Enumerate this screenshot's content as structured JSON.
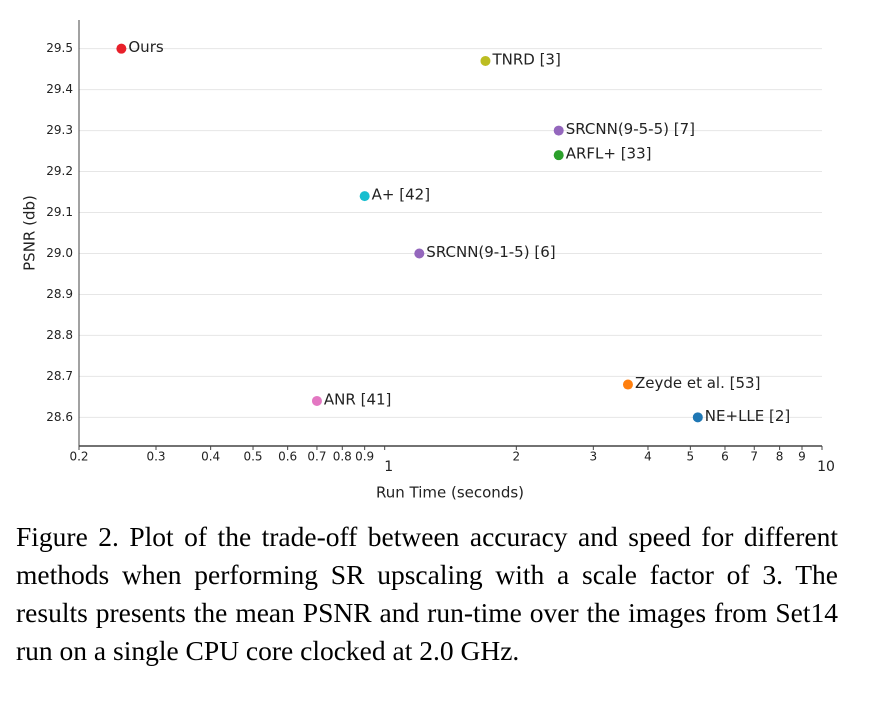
{
  "chart_data": {
    "type": "scatter",
    "xlabel": "Run Time (seconds)",
    "ylabel": "PSNR (db)",
    "log_x": true,
    "grid": true,
    "xlim": [
      0.2,
      10
    ],
    "ylim": [
      28.53,
      29.57
    ],
    "xticks": [
      0.2,
      0.3,
      0.4,
      0.5,
      0.6,
      0.7,
      0.8,
      0.9,
      1,
      2,
      3,
      4,
      5,
      6,
      7,
      8,
      9,
      10
    ],
    "yticks": [
      29.5,
      29.4,
      29.3,
      29.2,
      29.1,
      {
        "value": 29,
        "label": "29.0"
      },
      28.9,
      28.8,
      28.7,
      28.6
    ],
    "series": [
      {
        "name": "Ours",
        "color": "#e8202a",
        "x": [
          0.25
        ],
        "values": [
          29.5
        ]
      },
      {
        "name": "TNRD [3]",
        "color": "#bcbd22",
        "x": [
          1.7
        ],
        "values": [
          29.47
        ]
      },
      {
        "name": "SRCNN(9-5-5) [7]",
        "color": "#9467bd",
        "x": [
          2.5
        ],
        "values": [
          29.3
        ]
      },
      {
        "name": "ARFL+ [33]",
        "color": "#2ca02c",
        "x": [
          2.5
        ],
        "values": [
          29.24
        ]
      },
      {
        "name": "A+ [42]",
        "color": "#17becf",
        "x": [
          0.9
        ],
        "values": [
          29.14
        ]
      },
      {
        "name": "SRCNN(9-1-5) [6]",
        "color": "#9467bd",
        "x": [
          1.2
        ],
        "values": [
          29.0
        ]
      },
      {
        "name": "ANR [41]",
        "color": "#e377c2",
        "x": [
          0.7
        ],
        "values": [
          28.64
        ]
      },
      {
        "name": "Zeyde et al. [53]",
        "color": "#ff7f0e",
        "x": [
          3.6
        ],
        "values": [
          28.68
        ]
      },
      {
        "name": "NE+LLE [2]",
        "color": "#1f77b4",
        "x": [
          5.2
        ],
        "values": [
          28.6
        ]
      }
    ],
    "caption": "Figure 2. Plot of the trade-off between accuracy and speed for different methods when performing SR upscaling with a scale factor of 3. The results presents the mean PSNR and run-time over the images from Set14 run on a single CPU core clocked at 2.0 GHz."
  }
}
